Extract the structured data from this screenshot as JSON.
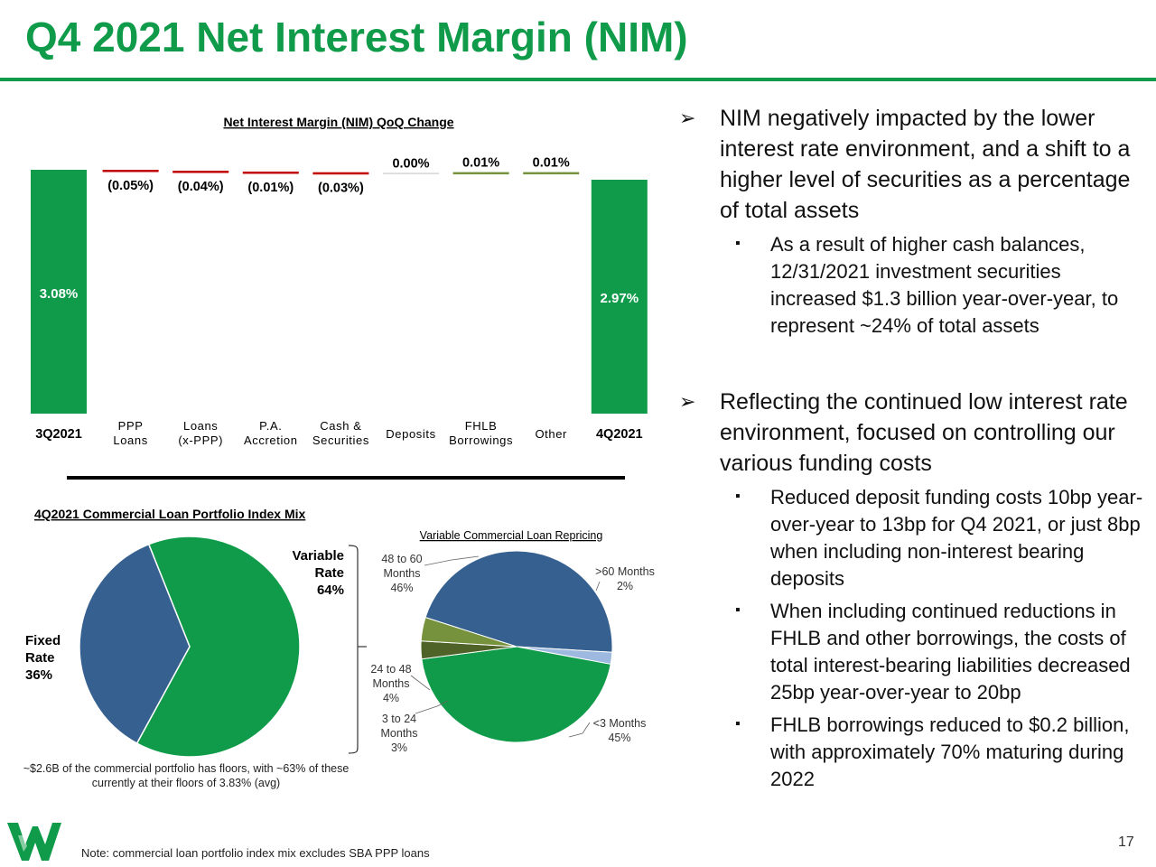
{
  "title": "Q4 2021 Net Interest Margin (NIM)",
  "colors": {
    "brand_green": "#0f9b49",
    "bar_green": "#0f9b49",
    "negative_red": "#c00000",
    "fixed_blue": "#35608f",
    "light_blue": "#9db9e0",
    "olive": "#76923c",
    "dark_olive": "#4f6228"
  },
  "chart_data": [
    {
      "type": "bar",
      "title": "Net Interest Margin (NIM) QoQ Change",
      "subtype": "waterfall",
      "categories": [
        "3Q2021",
        "PPP Loans",
        "Loans (x-PPP)",
        "P.A. Accretion",
        "Cash & Securities",
        "Deposits",
        "FHLB Borrowings",
        "Other",
        "4Q2021"
      ],
      "values": [
        3.08,
        -0.05,
        -0.04,
        -0.01,
        -0.03,
        0.0,
        0.01,
        0.01,
        2.97
      ],
      "data_labels": [
        "3.08%",
        "(0.05%)",
        "(0.04%)",
        "(0.01%)",
        "(0.03%)",
        "0.00%",
        "0.01%",
        "0.01%",
        "2.97%"
      ],
      "totals": [
        "3Q2021",
        "4Q2021"
      ],
      "y_unit": "%"
    },
    {
      "type": "pie",
      "title": "4Q2021 Commercial Loan Portfolio Index Mix",
      "categories": [
        "Variable Rate",
        "Fixed Rate"
      ],
      "values": [
        64,
        36
      ],
      "data_labels": [
        "64%",
        "36%"
      ]
    },
    {
      "type": "pie",
      "title": "Variable Commercial Loan Repricing",
      "categories": [
        "48 to 60 Months",
        ">60 Months",
        "<3 Months",
        "3 to 24 Months",
        "24 to 48 Months"
      ],
      "values": [
        46,
        2,
        45,
        3,
        4
      ],
      "data_labels": [
        "46%",
        "2%",
        "45%",
        "3%",
        "4%"
      ]
    }
  ],
  "waterfall": {
    "category_labels": [
      [
        "3Q2021"
      ],
      [
        "PPP",
        "Loans"
      ],
      [
        "Loans",
        "(x-PPP)"
      ],
      [
        "P.A.",
        "Accretion"
      ],
      [
        "Cash &",
        "Securities"
      ],
      [
        "Deposits"
      ],
      [
        "FHLB",
        "Borrowings"
      ],
      [
        "Other"
      ],
      [
        "4Q2021"
      ]
    ]
  },
  "mix_pie": {
    "variable_label": [
      "Variable",
      "Rate",
      "64%"
    ],
    "fixed_label": [
      "Fixed",
      "Rate",
      "36%"
    ]
  },
  "repricing_pie": {
    "labels": [
      [
        "48 to 60",
        "Months",
        "46%"
      ],
      [
        ">60 Months",
        "2%"
      ],
      [
        "<3 Months",
        "45%"
      ],
      [
        "3 to 24",
        "Months",
        "3%"
      ],
      [
        "24 to 48",
        "Months",
        "4%"
      ]
    ]
  },
  "floors_note": "~$2.6B of the commercial portfolio has floors, with ~63% of these currently at their floors of 3.83% (avg)",
  "bullets": [
    {
      "text": "NIM negatively impacted by the lower interest rate environment, and a shift to a higher level of securities as a percentage of total assets",
      "sub": [
        "As a result of higher cash balances, 12/31/2021 investment securities increased $1.3 billion year-over-year, to represent ~24% of total assets"
      ]
    },
    {
      "text": "Reflecting the continued low interest rate environment, focused on controlling our various funding costs",
      "sub": [
        "Reduced deposit funding costs 10bp year-over-year to 13bp for Q4 2021, or just 8bp when including non-interest bearing deposits",
        "When including continued reductions in FHLB and other borrowings, the costs of total interest-bearing liabilities decreased 25bp year-over-year to 20bp",
        "FHLB borrowings reduced to $0.2 billion, with approximately 70% maturing during 2022"
      ]
    }
  ],
  "page_number": "17",
  "footnote": "Note: commercial loan portfolio index mix excludes SBA PPP loans"
}
